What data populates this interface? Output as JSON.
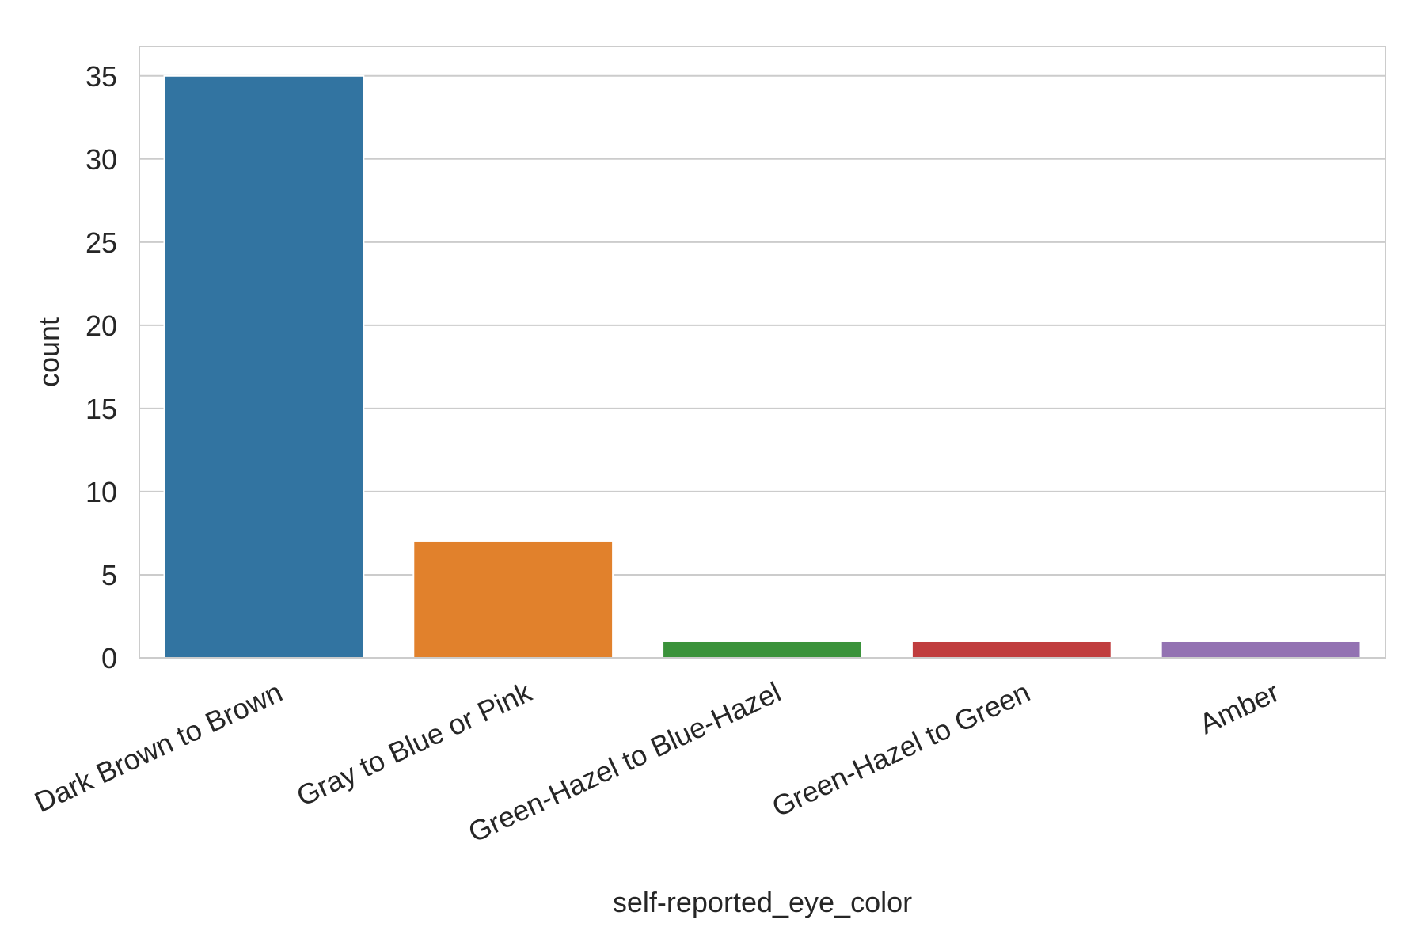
{
  "chart_data": {
    "type": "bar",
    "title": "",
    "xlabel": "self-reported_eye_color",
    "ylabel": "count",
    "categories": [
      "Dark Brown to Brown",
      "Gray to Blue or Pink",
      "Green-Hazel to Blue-Hazel",
      "Green-Hazel to Green",
      "Amber"
    ],
    "values": [
      35,
      7,
      1,
      1,
      1
    ],
    "colors": [
      "#3274a1",
      "#e1812c",
      "#3a923a",
      "#c03d3e",
      "#9372b2"
    ],
    "ylim": [
      0,
      36.75
    ],
    "yticks": [
      0,
      5,
      10,
      15,
      20,
      25,
      30,
      35
    ],
    "grid": true,
    "legend": "none"
  }
}
